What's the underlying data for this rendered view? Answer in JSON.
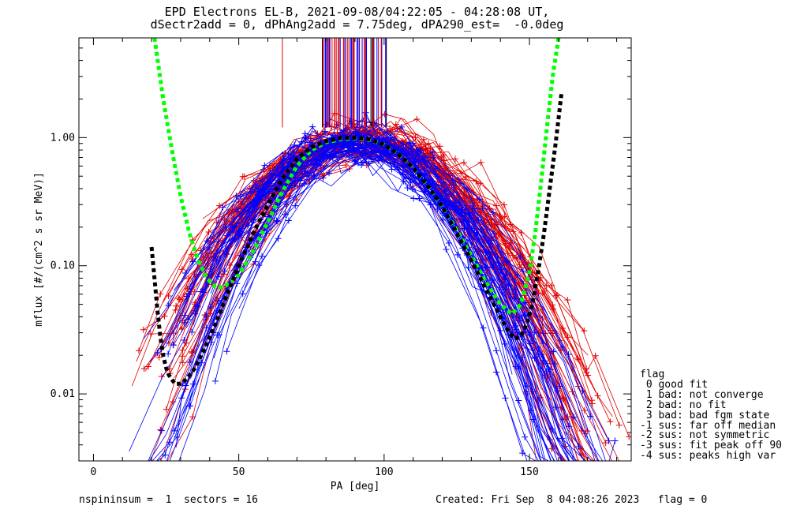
{
  "chart_data": {
    "type": "scatter",
    "title": "EPD Electrons EL-B, 2021-09-08/04:22:05 - 04:28:08 UT,",
    "subtitle": "dSectr2add = 0, dPhAng2add = 7.75deg, dPA290_est=  -0.0deg",
    "xlabel": "PA [deg]",
    "ylabel": "mflux [#/(cm^2 s sr MeV)]",
    "xlim": [
      -5,
      185
    ],
    "ylim": [
      0.003,
      6.0
    ],
    "yscale": "log",
    "xticks": [
      0,
      50,
      100,
      150
    ],
    "xticklabels": [
      "0",
      "50",
      "100",
      "150"
    ],
    "yticks": [
      0.01,
      0.1,
      1.0
    ],
    "yticklabels": [
      "0.01",
      "0.10",
      "1.00"
    ],
    "colors": {
      "red": "#e00000",
      "blue": "#0000ff",
      "green": "#00ff00",
      "black": "#000000"
    },
    "series": [
      {
        "name": "",
        "color": "red",
        "style": "line+plus",
        "description_none": "",
        "base_curve": {
          "peak_pa": 92,
          "peak_flux": 0.98,
          "width_sigma_deg": 24
        }
      },
      {
        "name": "",
        "color": "blue",
        "style": "line+plus",
        "base_curve": {
          "peak_pa": 90,
          "peak_flux": 0.95,
          "width_sigma_deg": 22
        }
      },
      {
        "name": "",
        "color": "green",
        "style": "dashed",
        "x": [
          21,
          24,
          27,
          30,
          33,
          36,
          39,
          42,
          45,
          50,
          55,
          60,
          65,
          70,
          75,
          80,
          85,
          90,
          95,
          100,
          105,
          110,
          115,
          120,
          125,
          130,
          135,
          140,
          144,
          147,
          150,
          152,
          154,
          156,
          158,
          160
        ],
        "y": [
          6.0,
          2.0,
          0.8,
          0.35,
          0.18,
          0.11,
          0.08,
          0.068,
          0.068,
          0.085,
          0.13,
          0.22,
          0.38,
          0.6,
          0.8,
          0.92,
          0.97,
          0.99,
          0.96,
          0.88,
          0.74,
          0.58,
          0.42,
          0.29,
          0.19,
          0.12,
          0.075,
          0.05,
          0.042,
          0.05,
          0.09,
          0.18,
          0.45,
          1.2,
          3.0,
          6.0
        ]
      },
      {
        "name": "",
        "color": "black",
        "style": "dashed",
        "x": [
          20,
          21,
          22,
          23,
          24,
          25,
          26,
          28,
          30,
          32,
          35,
          38,
          42,
          46,
          50,
          55,
          60,
          65,
          70,
          75,
          80,
          85,
          90,
          95,
          100,
          105,
          110,
          115,
          120,
          125,
          130,
          135,
          140,
          143,
          145,
          147,
          149,
          151,
          153,
          155,
          157,
          159,
          161
        ],
        "y": [
          0.14,
          0.08,
          0.045,
          0.028,
          0.02,
          0.016,
          0.014,
          0.012,
          0.012,
          0.013,
          0.016,
          0.022,
          0.035,
          0.06,
          0.1,
          0.18,
          0.3,
          0.48,
          0.68,
          0.84,
          0.94,
          0.99,
          1.0,
          0.97,
          0.88,
          0.74,
          0.58,
          0.42,
          0.29,
          0.18,
          0.11,
          0.066,
          0.04,
          0.03,
          0.027,
          0.028,
          0.035,
          0.05,
          0.09,
          0.18,
          0.4,
          0.9,
          2.2
        ]
      }
    ]
  },
  "legend": {
    "title": "flag",
    "items": [
      " 0 good fit",
      " 1 bad: not converge",
      " 2 bad: no fit",
      " 3 bad: bad fgm state",
      "-1 sus: far off median",
      "-2 sus: not symmetric",
      "-3 sus: fit peak off 90",
      "-4 sus: peaks high var"
    ]
  },
  "footer": {
    "left": "nspininsum =  1  sectors = 16",
    "right": "Created: Fri Sep  8 04:08:26 2023   flag = 0"
  }
}
